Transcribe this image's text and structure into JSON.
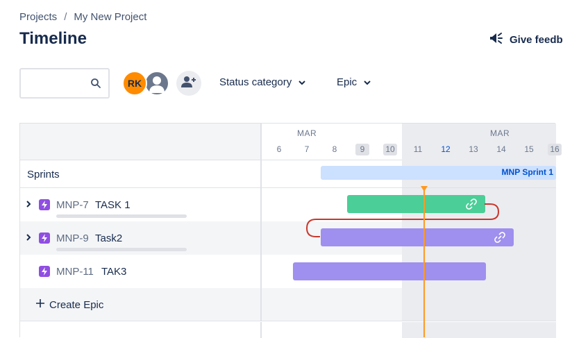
{
  "breadcrumb": {
    "items": [
      "Projects",
      "My New Project"
    ],
    "separator": "/"
  },
  "page": {
    "title": "Timeline",
    "feedback_label": "Give feedb"
  },
  "toolbar": {
    "search_placeholder": "",
    "avatar_initials": "RK",
    "filters": [
      {
        "label": "Status category"
      },
      {
        "label": "Epic"
      }
    ]
  },
  "timeline": {
    "months": [
      "MAR",
      "MAR"
    ],
    "days": [
      "6",
      "7",
      "8",
      "9",
      "10",
      "11",
      "12",
      "13",
      "14",
      "15",
      "16"
    ],
    "weekend_days": [
      "9",
      "10",
      "16"
    ],
    "today": "12"
  },
  "rows": {
    "sprints_label": "Sprints",
    "sprint_bar_label": "MNP Sprint 1",
    "epics": [
      {
        "key": "MNP-7",
        "name": "TASK 1",
        "expandable": true,
        "bar_color": "green"
      },
      {
        "key": "MNP-9",
        "name": "Task2",
        "expandable": true,
        "bar_color": "purple"
      },
      {
        "key": "MNP-11",
        "name": "TAK3",
        "expandable": false,
        "bar_color": "purple"
      }
    ],
    "create_epic_label": "Create Epic"
  },
  "colors": {
    "green_bar": "#4bce97",
    "purple_bar": "#9f8fef",
    "sprint_bar": "#cce0ff",
    "today_line": "#ff991f",
    "dependency": "#c9372c",
    "epic_icon": "#904ee2",
    "avatar": "#ff8b00"
  }
}
